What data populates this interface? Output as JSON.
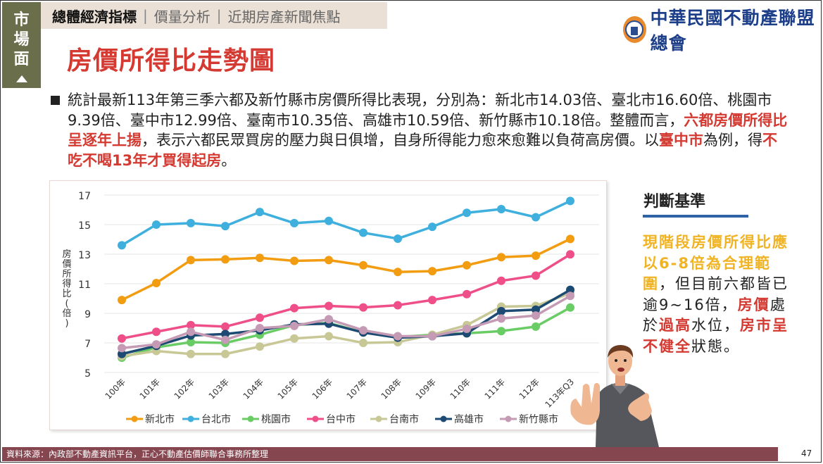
{
  "side_tab": {
    "chars": [
      "市",
      "場",
      "面"
    ]
  },
  "topnav": {
    "items": [
      {
        "label": "總體經濟指標",
        "active": true
      },
      {
        "label": "價量分析",
        "active": false
      },
      {
        "label": "近期房產新聞焦點",
        "active": false
      }
    ],
    "separator": "|"
  },
  "logo": {
    "text": "中華民國不動產聯盟總會"
  },
  "page_title": "房價所得比走勢圖",
  "bullet": {
    "p1": "統計最新113年第三季六都及新竹縣市房價所得比表現，分別為：新北市14.03倍、臺北市16.60倍、桃園市9.39倍、臺中市12.99倍、臺南市10.35倍、高雄市10.59倍、新竹縣市10.18倍。整體而言，",
    "h1": "六都房價所得比呈逐年上揚",
    "p2": "，表示六都民眾買房的壓力與日俱增，自身所得能力愈來愈難以負荷高房價。以",
    "h2": "臺中市",
    "p3": "為例，得",
    "h3": "不吃不喝13年才買得起房",
    "p4": "。"
  },
  "judgment": {
    "title": "判斷基準",
    "y1": "現階段房價所得比應以6-8倍為合理範圍",
    "t1": "，但目前六都皆已逾9~16倍，",
    "r1": "房價",
    "t2": "處於",
    "r2": "過高",
    "t3": "水位，",
    "r3": "房市呈不健全",
    "t4": "狀態。"
  },
  "footer": {
    "source": "資料來源：內政部不動產資訊平台，正心不動產估價師聯合事務所整理"
  },
  "page_number": "47",
  "chart_data": {
    "type": "line",
    "title": "",
    "xlabel": "",
    "ylabel": "房價所得比(倍)",
    "ylim": [
      5,
      17
    ],
    "yticks": [
      5,
      7,
      9,
      11,
      13,
      15,
      17
    ],
    "grid": true,
    "legend": "bottom",
    "categories": [
      "100年",
      "101年",
      "102年",
      "103年",
      "104年",
      "105年",
      "106年",
      "107年",
      "108年",
      "109年",
      "110年",
      "111年",
      "112年",
      "113年Q3"
    ],
    "series": [
      {
        "name": "新北市",
        "color": "#f29c11",
        "values": [
          9.9,
          11.05,
          12.6,
          12.65,
          12.75,
          12.55,
          12.6,
          12.25,
          11.8,
          11.85,
          12.25,
          12.8,
          12.9,
          14.03
        ]
      },
      {
        "name": "台北市",
        "color": "#3fb0dd",
        "values": [
          13.6,
          15.0,
          15.1,
          14.9,
          15.85,
          15.1,
          15.25,
          14.45,
          14.05,
          14.85,
          15.8,
          16.05,
          15.5,
          16.6
        ]
      },
      {
        "name": "桃園市",
        "color": "#6acc64",
        "values": [
          6.0,
          6.7,
          7.05,
          7.0,
          7.55,
          8.2,
          8.35,
          7.7,
          7.4,
          7.55,
          7.65,
          7.8,
          8.1,
          9.39
        ]
      },
      {
        "name": "台中市",
        "color": "#ef4f88",
        "values": [
          7.3,
          7.75,
          8.2,
          8.1,
          8.7,
          9.35,
          9.5,
          9.4,
          9.55,
          9.9,
          10.3,
          11.2,
          11.55,
          12.99
        ]
      },
      {
        "name": "台南市",
        "color": "#c8c896",
        "values": [
          6.1,
          6.45,
          6.25,
          6.25,
          6.75,
          7.3,
          7.45,
          7.0,
          7.05,
          7.55,
          8.2,
          9.45,
          9.5,
          10.35
        ]
      },
      {
        "name": "高雄市",
        "color": "#1c4a73",
        "values": [
          6.25,
          6.8,
          7.5,
          7.6,
          7.85,
          8.25,
          8.3,
          7.7,
          7.35,
          7.45,
          7.65,
          9.15,
          9.25,
          10.59
        ]
      },
      {
        "name": "新竹縣市",
        "color": "#c49ab4",
        "values": [
          6.65,
          6.9,
          7.75,
          7.2,
          8.0,
          8.15,
          8.6,
          7.85,
          7.45,
          7.45,
          7.95,
          8.65,
          8.85,
          10.18
        ]
      }
    ]
  }
}
